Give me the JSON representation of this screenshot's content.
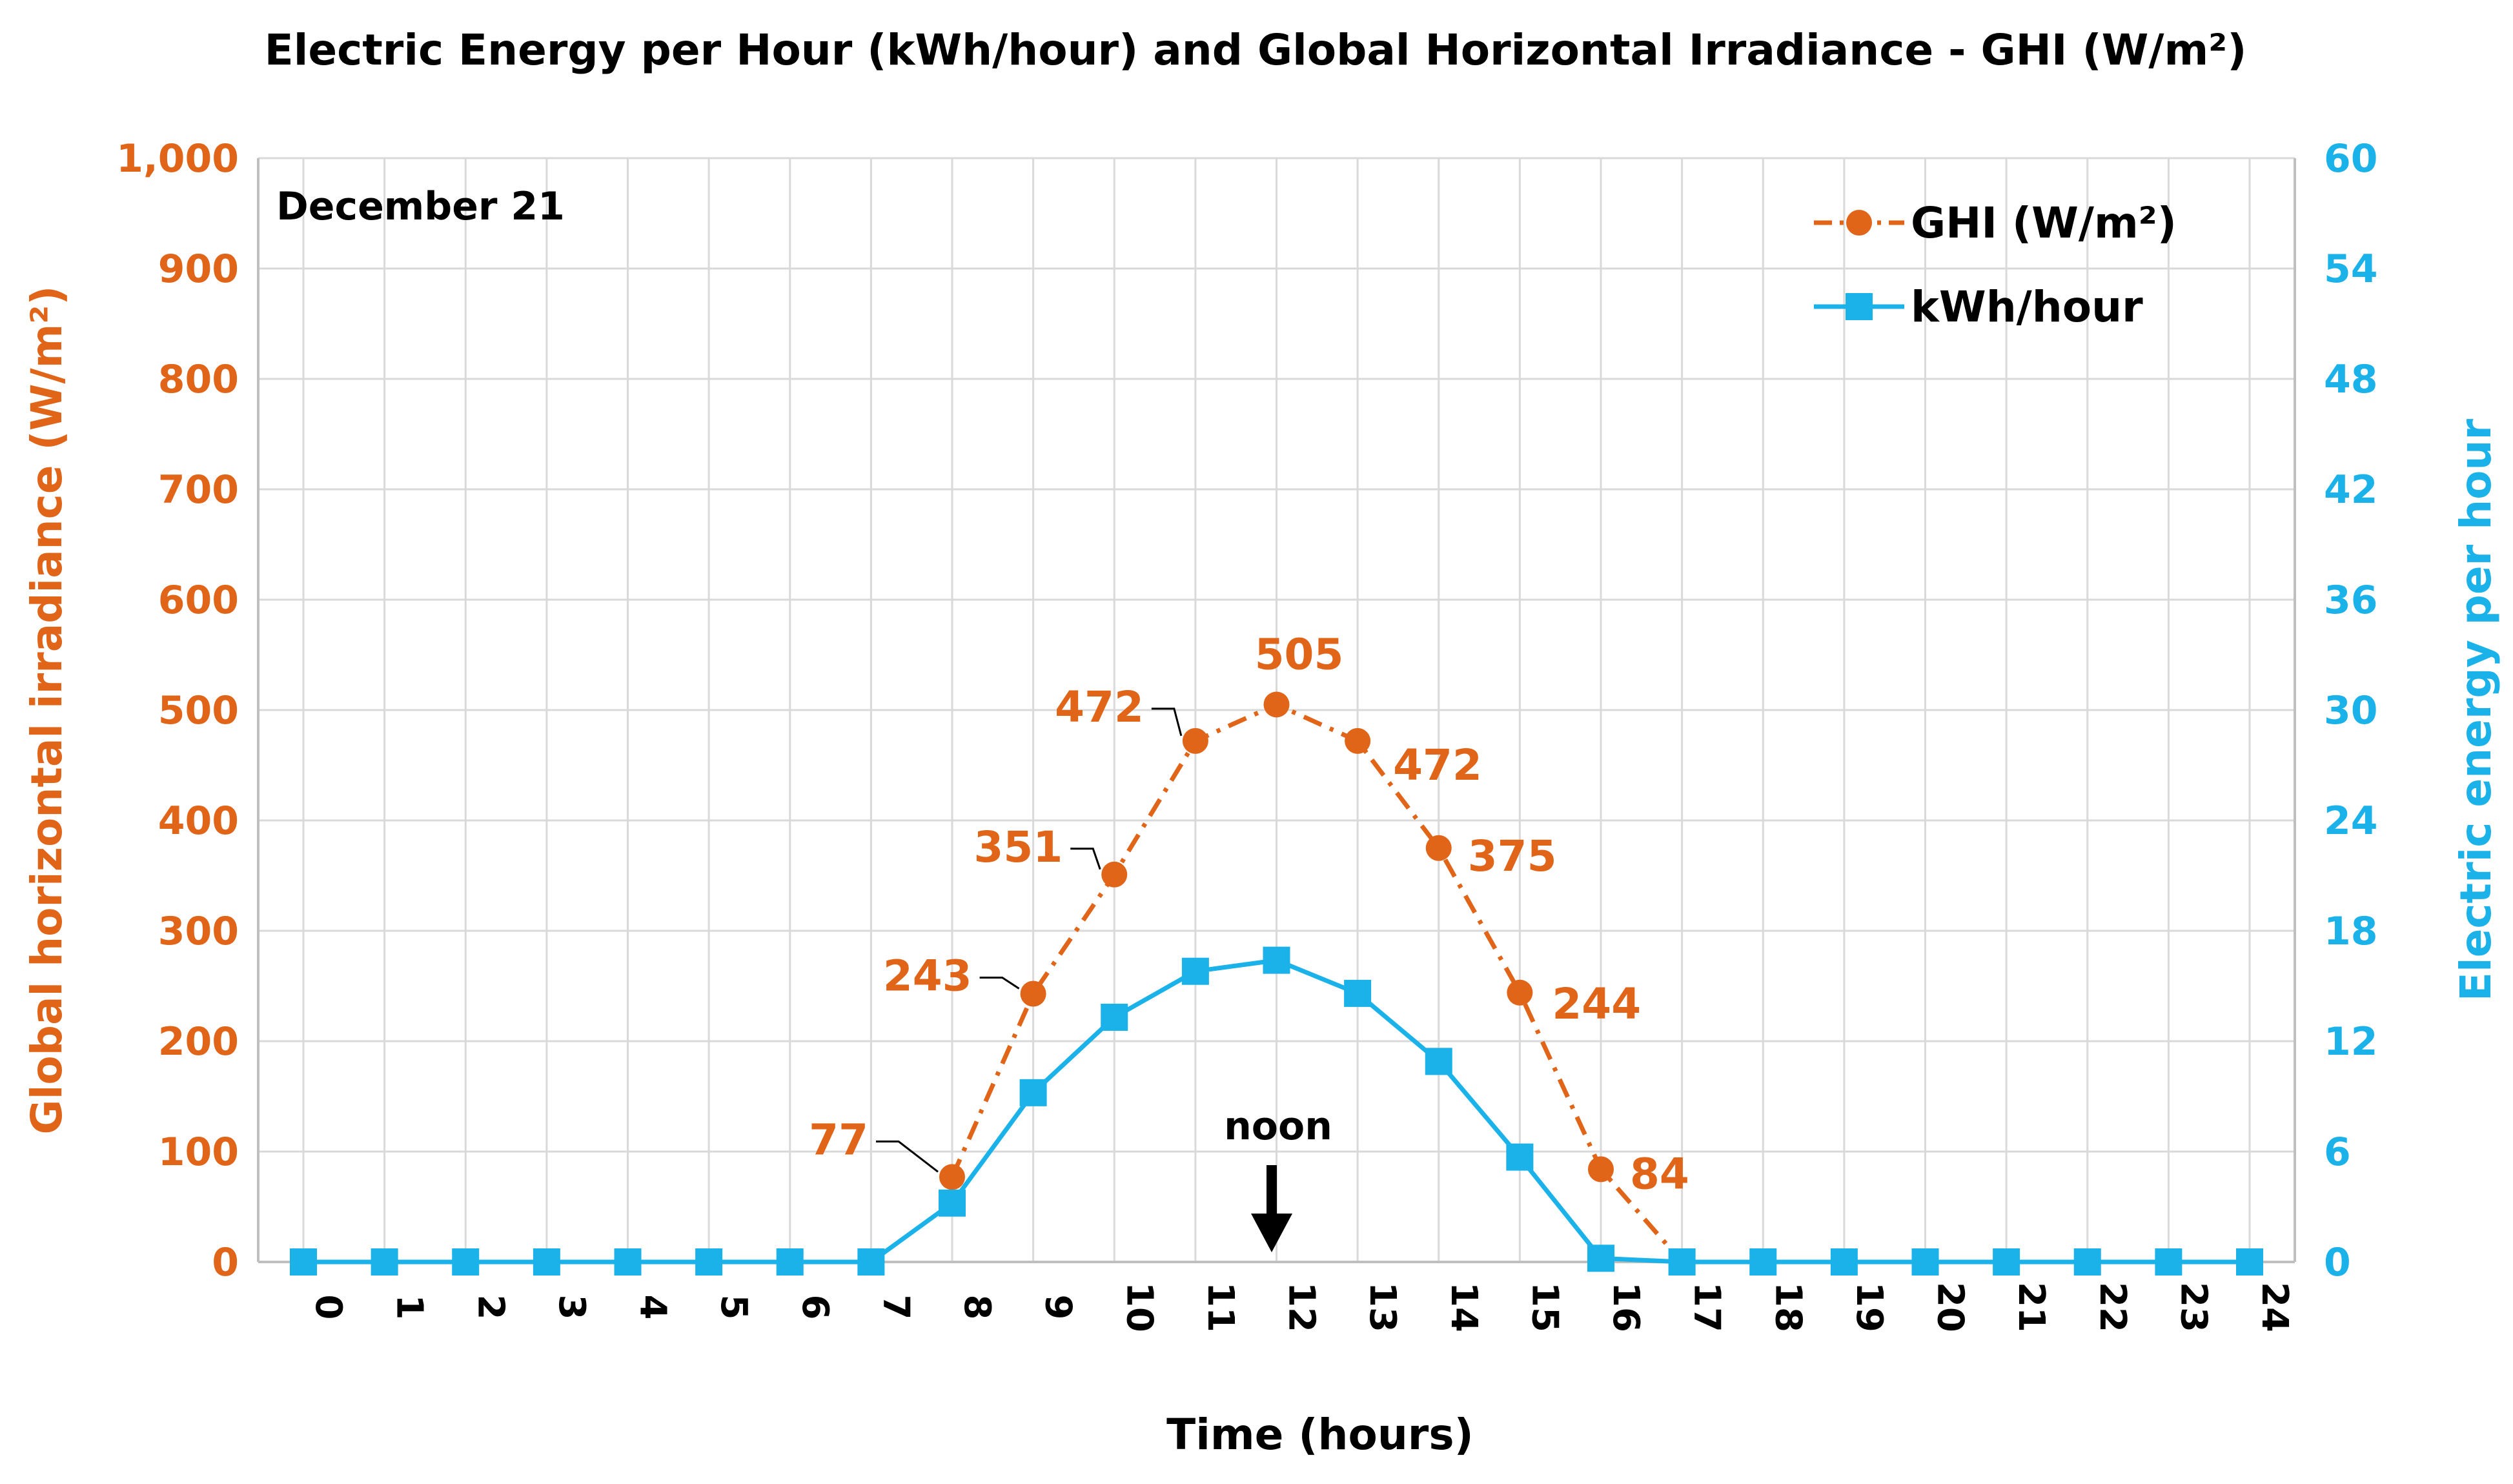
{
  "chart_data": {
    "type": "line",
    "title": "Electric Energy per Hour (kWh/hour) and Global Horizontal Irradiance - GHI (W/m²)",
    "annotation": "December 21",
    "noon_label": "noon",
    "xlabel": "Time (hours)",
    "ylabel_left": "Global horizontal irradiance (W/m²)",
    "ylabel_right": "Electric energy per hour",
    "x": [
      0,
      1,
      2,
      3,
      4,
      5,
      6,
      7,
      8,
      9,
      10,
      11,
      12,
      13,
      14,
      15,
      16,
      17,
      18,
      19,
      20,
      21,
      22,
      23,
      24
    ],
    "x_tick_labels": [
      "0",
      "1",
      "2",
      "3",
      "4",
      "5",
      "6",
      "7",
      "8",
      "9",
      "10",
      "11",
      "12",
      "13",
      "14",
      "15",
      "16",
      "17",
      "18",
      "19",
      "20",
      "21",
      "22",
      "23",
      "24"
    ],
    "ylim_left": [
      0,
      1000
    ],
    "ylim_right": [
      0,
      60
    ],
    "y_left_tick_labels": [
      "0",
      "100",
      "200",
      "300",
      "400",
      "500",
      "600",
      "700",
      "800",
      "900",
      "1,000"
    ],
    "y_right_tick_labels": [
      "0",
      "6",
      "12",
      "18",
      "24",
      "30",
      "36",
      "42",
      "48",
      "54",
      "60"
    ],
    "grid": true,
    "legend_position": "top-right",
    "series": [
      {
        "name": "GHI (W/m²)",
        "axis": "left",
        "color": "#e06519",
        "marker": "circle",
        "line_style": "dash-dot",
        "values": [
          null,
          null,
          null,
          null,
          null,
          null,
          null,
          null,
          77,
          243,
          351,
          472,
          505,
          472,
          375,
          244,
          84,
          0,
          null,
          null,
          null,
          null,
          null,
          null,
          null
        ],
        "data_labels": [
          {
            "x": 8,
            "text": "77"
          },
          {
            "x": 9,
            "text": "243"
          },
          {
            "x": 10,
            "text": "351"
          },
          {
            "x": 11,
            "text": "472"
          },
          {
            "x": 12,
            "text": "505"
          },
          {
            "x": 13,
            "text": "472"
          },
          {
            "x": 14,
            "text": "375"
          },
          {
            "x": 15,
            "text": "244"
          },
          {
            "x": 16,
            "text": "84"
          }
        ]
      },
      {
        "name": "kWh/hour",
        "axis": "right",
        "color": "#1ab2e8",
        "marker": "square",
        "line_style": "solid",
        "values": [
          0,
          0,
          0,
          0,
          0,
          0,
          0,
          0,
          3.2,
          9.2,
          13.3,
          15.8,
          16.4,
          14.6,
          10.9,
          5.7,
          0.2,
          0,
          0,
          0,
          0,
          0,
          0,
          0,
          0
        ]
      }
    ]
  }
}
